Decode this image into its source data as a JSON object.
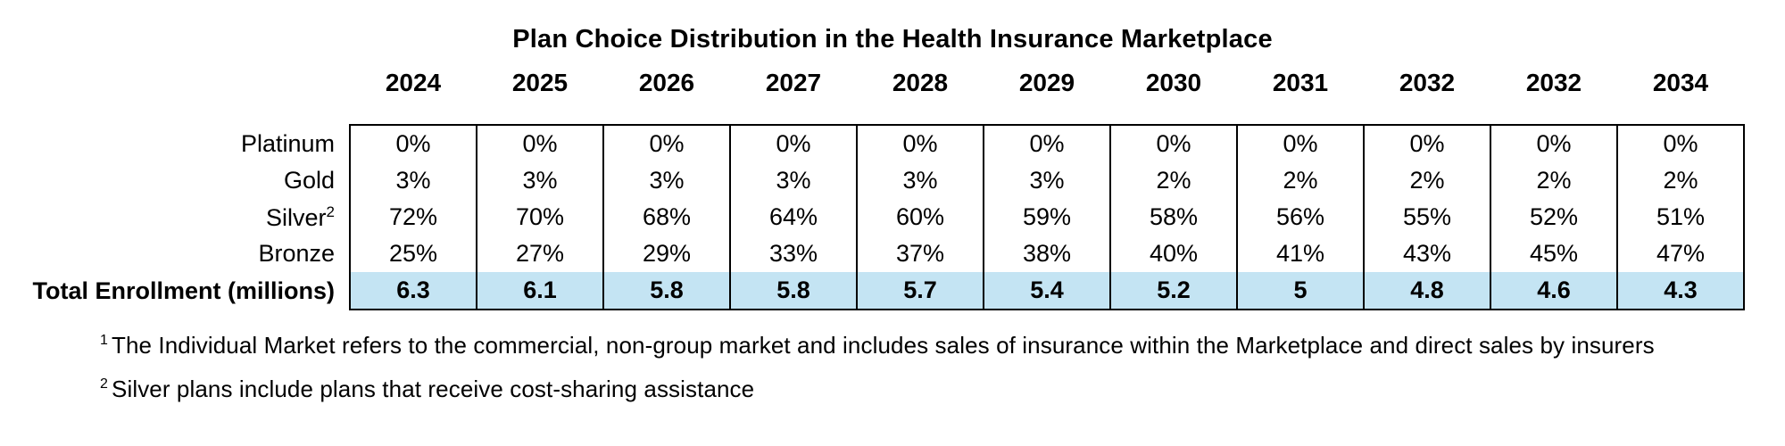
{
  "title": "Plan Choice Distribution in the Health Insurance Marketplace",
  "table": {
    "highlight_color": "#C4E4F3",
    "years": [
      "2024",
      "2025",
      "2026",
      "2027",
      "2028",
      "2029",
      "2030",
      "2031",
      "2032",
      "2032",
      "2034"
    ],
    "rows": [
      {
        "label": "Platinum",
        "sup": "",
        "highlight": false,
        "values": [
          "0%",
          "0%",
          "0%",
          "0%",
          "0%",
          "0%",
          "0%",
          "0%",
          "0%",
          "0%",
          "0%"
        ]
      },
      {
        "label": "Gold",
        "sup": "",
        "highlight": false,
        "values": [
          "3%",
          "3%",
          "3%",
          "3%",
          "3%",
          "3%",
          "2%",
          "2%",
          "2%",
          "2%",
          "2%"
        ]
      },
      {
        "label": "Silver",
        "sup": "2",
        "highlight": false,
        "values": [
          "72%",
          "70%",
          "68%",
          "64%",
          "60%",
          "59%",
          "58%",
          "56%",
          "55%",
          "52%",
          "51%"
        ]
      },
      {
        "label": "Bronze",
        "sup": "",
        "highlight": false,
        "values": [
          "25%",
          "27%",
          "29%",
          "33%",
          "37%",
          "38%",
          "40%",
          "41%",
          "43%",
          "45%",
          "47%"
        ]
      },
      {
        "label": "Total Enrollment (millions)",
        "sup": "",
        "highlight": true,
        "values": [
          "6.3",
          "6.1",
          "5.8",
          "5.8",
          "5.7",
          "5.4",
          "5.2",
          "5",
          "4.8",
          "4.6",
          "4.3"
        ]
      }
    ]
  },
  "footnotes": [
    {
      "marker": "1",
      "text": "The Individual Market refers to the commercial, non-group market and includes sales of insurance within the Marketplace and direct sales by insurers"
    },
    {
      "marker": "2",
      "text": "Silver plans include plans that receive cost-sharing assistance"
    }
  ],
  "chart_data": {
    "type": "table",
    "title": "Plan Choice Distribution in the Health Insurance Marketplace",
    "columns": [
      "2024",
      "2025",
      "2026",
      "2027",
      "2028",
      "2029",
      "2030",
      "2031",
      "2032",
      "2032",
      "2034"
    ],
    "rows": [
      {
        "label": "Platinum",
        "unit": "percent",
        "values": [
          0,
          0,
          0,
          0,
          0,
          0,
          0,
          0,
          0,
          0,
          0
        ]
      },
      {
        "label": "Gold",
        "unit": "percent",
        "values": [
          3,
          3,
          3,
          3,
          3,
          3,
          2,
          2,
          2,
          2,
          2
        ]
      },
      {
        "label": "Silver",
        "unit": "percent",
        "values": [
          72,
          70,
          68,
          64,
          60,
          59,
          58,
          56,
          55,
          52,
          51
        ]
      },
      {
        "label": "Bronze",
        "unit": "percent",
        "values": [
          25,
          27,
          29,
          33,
          37,
          38,
          40,
          41,
          43,
          45,
          47
        ]
      },
      {
        "label": "Total Enrollment (millions)",
        "unit": "millions",
        "values": [
          6.3,
          6.1,
          5.8,
          5.8,
          5.7,
          5.4,
          5.2,
          5,
          4.8,
          4.6,
          4.3
        ]
      }
    ],
    "notes": [
      "The Individual Market refers to the commercial, non-group market and includes sales of insurance within the Marketplace and direct sales by insurers",
      "Silver plans include plans that receive cost-sharing assistance"
    ]
  }
}
